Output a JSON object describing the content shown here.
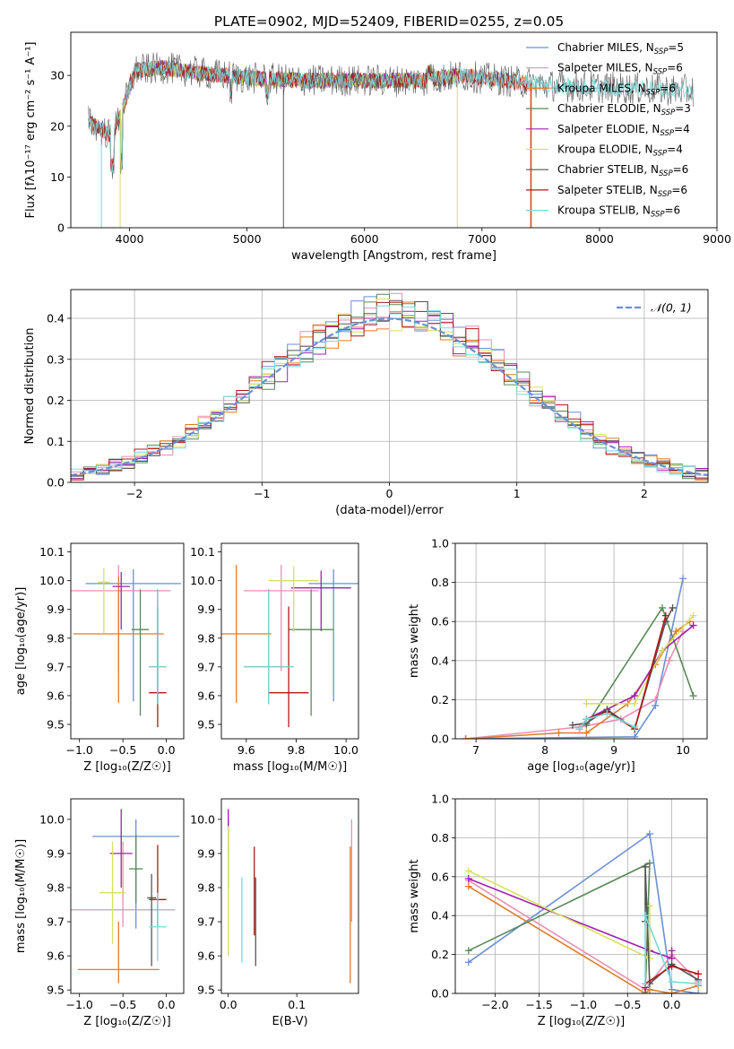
{
  "figure_title": "PLATE=0902, MJD=52409, FIBERID=0255, z=0.05",
  "colors": {
    "Chabrier MILES": "#6b8fd6",
    "Salpeter MILES": "#e88fb5",
    "Kroupa MILES": "#e07b2a",
    "Chabrier ELODIE": "#5a8a5a",
    "Salpeter ELODIE": "#a020b0",
    "Kroupa ELODIE": "#d8e060",
    "Chabrier STELIB": "#555555",
    "Salpeter STELIB": "#b01818",
    "Kroupa STELIB": "#78d8d8"
  },
  "chart_data": [
    {
      "id": "spectrum",
      "type": "line",
      "title": "PLATE=0902, MJD=52409, FIBERID=0255, z=0.05",
      "xlabel": "wavelength [Angstrom, rest frame]",
      "ylabel": "Flux [fλ10⁻¹⁷ erg cm⁻² s⁻¹ A⁻¹]",
      "xlim": [
        3500,
        9000
      ],
      "ylim": [
        0,
        38.5
      ],
      "xticks": [
        4000,
        5000,
        6000,
        7000,
        8000,
        9000
      ],
      "yticks": [
        0,
        10,
        20,
        30
      ],
      "grid": false,
      "legend_position": "top-right",
      "legend": [
        {
          "label": "Chabrier MILES, N",
          "sub": "SSP",
          "suffix": "=5"
        },
        {
          "label": "Salpeter MILES, N",
          "sub": "SSP",
          "suffix": "=6"
        },
        {
          "label": "Kroupa MILES, N",
          "sub": "SSP",
          "suffix": "=6"
        },
        {
          "label": "Chabrier ELODIE, N",
          "sub": "SSP",
          "suffix": "=3"
        },
        {
          "label": "Salpeter ELODIE, N",
          "sub": "SSP",
          "suffix": "=4"
        },
        {
          "label": "Kroupa ELODIE, N",
          "sub": "SSP",
          "suffix": "=4"
        },
        {
          "label": "Chabrier STELIB, N",
          "sub": "SSP",
          "suffix": "=6"
        },
        {
          "label": "Salpeter STELIB, N",
          "sub": "SSP",
          "suffix": "=6"
        },
        {
          "label": "Kroupa STELIB, N",
          "sub": "SSP",
          "suffix": "=6"
        }
      ],
      "series": [
        {
          "name": "Chabrier MILES",
          "wave_range": [
            3650,
            7400
          ],
          "flat_to": 8100,
          "flat_value": 27.5
        },
        {
          "name": "Salpeter MILES",
          "wave_range": [
            3650,
            7400
          ],
          "flat_to": 7600,
          "flat_value": 27.5
        },
        {
          "name": "Kroupa MILES",
          "wave_range": [
            3650,
            7400
          ],
          "flat_to": 7600,
          "flat_value": 27.5
        },
        {
          "name": "Chabrier ELODIE",
          "wave_range": [
            3900,
            6800
          ]
        },
        {
          "name": "Salpeter ELODIE",
          "wave_range": [
            3900,
            6800
          ]
        },
        {
          "name": "Kroupa ELODIE",
          "wave_range": [
            3900,
            6800
          ]
        },
        {
          "name": "Chabrier STELIB",
          "wave_range": [
            3650,
            8800
          ]
        },
        {
          "name": "Salpeter STELIB",
          "wave_range": [
            3650,
            7400
          ]
        },
        {
          "name": "Kroupa STELIB",
          "wave_range": [
            3650,
            8800
          ]
        }
      ],
      "continuum": [
        [
          3650,
          21
        ],
        [
          3850,
          18
        ],
        [
          3950,
          24
        ],
        [
          4050,
          31
        ],
        [
          4300,
          31.5
        ],
        [
          4600,
          30.5
        ],
        [
          5000,
          29.5
        ],
        [
          5500,
          29
        ],
        [
          6000,
          29
        ],
        [
          6500,
          29
        ],
        [
          6800,
          30
        ],
        [
          7200,
          29
        ],
        [
          7600,
          28
        ],
        [
          8200,
          27.5
        ],
        [
          8800,
          27
        ]
      ]
    },
    {
      "id": "residuals",
      "type": "histogram",
      "xlabel": "(data-model)/error",
      "ylabel": "Normed distribution",
      "xlim": [
        -2.5,
        2.5
      ],
      "ylim": [
        0,
        0.47
      ],
      "xticks": [
        -2,
        -1,
        0,
        1,
        2
      ],
      "yticks": [
        0.0,
        0.1,
        0.2,
        0.3,
        0.4
      ],
      "grid": true,
      "legend_position": "top-right",
      "legend_label": "𝒩(0, 1)",
      "bin_width": 0.1,
      "reference_curve": "normal(0,1)"
    },
    {
      "id": "age-vs-z",
      "type": "scatter-errorbar",
      "xlabel": "Z [log₁₀(Z/Z☉)]",
      "ylabel": "age  [log₁₀(age/yr)]",
      "xlim": [
        -1.1,
        0.2
      ],
      "ylim": [
        9.45,
        10.13
      ],
      "xticks": [
        -1.0,
        -0.5,
        0.0
      ],
      "yticks": [
        9.5,
        9.6,
        9.7,
        9.8,
        9.9,
        10.0,
        10.1
      ],
      "points": [
        {
          "name": "Chabrier MILES",
          "x": -0.38,
          "xerr": 0.55,
          "y": 9.99,
          "yerr": 0.05,
          "yerr_lo": 0.41
        },
        {
          "name": "Salpeter MILES",
          "x": -0.55,
          "xerr": 0.6,
          "y": 9.965,
          "yerr": 0.09,
          "yerr_lo": 0.28
        },
        {
          "name": "Kroupa MILES",
          "x": -0.55,
          "xerr": 0.52,
          "y": 9.815,
          "yerr": 0.2,
          "yerr_lo": 0.24
        },
        {
          "name": "Chabrier ELODIE",
          "x": -0.3,
          "xerr": 0.1,
          "y": 9.83,
          "yerr": 0.14,
          "yerr_lo": 0.3
        },
        {
          "name": "Salpeter ELODIE",
          "x": -0.52,
          "xerr": 0.1,
          "y": 9.98,
          "yerr": 0.05,
          "yerr_lo": 0.15
        },
        {
          "name": "Kroupa ELODIE",
          "x": -0.72,
          "xerr": 0.07,
          "y": 9.995,
          "yerr": 0.05,
          "yerr_lo": 0.18
        },
        {
          "name": "Chabrier STELIB",
          "x": -0.1,
          "xerr": 0.1,
          "y": 9.7,
          "yerr": 0.27,
          "yerr_lo": 0.13
        },
        {
          "name": "Salpeter STELIB",
          "x": -0.1,
          "xerr": 0.1,
          "y": 9.61,
          "yerr": 0.3,
          "yerr_lo": 0.12
        },
        {
          "name": "Kroupa STELIB",
          "x": -0.1,
          "xerr": 0.1,
          "y": 9.7,
          "yerr": 0.27,
          "yerr_lo": 0.13
        }
      ]
    },
    {
      "id": "age-vs-mass",
      "type": "scatter-errorbar",
      "xlabel": "mass [log₁₀(M/M☉)]",
      "ylabel": "",
      "xlim": [
        9.5,
        10.05
      ],
      "ylim": [
        9.45,
        10.13
      ],
      "xticks": [
        9.6,
        9.8,
        10.0
      ],
      "yticks": [
        9.5,
        9.6,
        9.7,
        9.8,
        9.9,
        10.0,
        10.1
      ],
      "points": [
        {
          "name": "Chabrier MILES",
          "x": 9.95,
          "xerr": 0.1,
          "y": 9.99,
          "yerr": 0.05,
          "yerr_lo": 0.41
        },
        {
          "name": "Salpeter MILES",
          "x": 9.74,
          "xerr": 0.15,
          "y": 9.965,
          "yerr": 0.09,
          "yerr_lo": 0.28
        },
        {
          "name": "Kroupa MILES",
          "x": 9.56,
          "xerr": 0.14,
          "y": 9.815,
          "yerr": 0.24,
          "yerr_lo": 0.24
        },
        {
          "name": "Chabrier ELODIE",
          "x": 9.86,
          "xerr": 0.09,
          "y": 9.83,
          "yerr": 0.14,
          "yerr_lo": 0.3
        },
        {
          "name": "Salpeter ELODIE",
          "x": 9.9,
          "xerr": 0.12,
          "y": 9.975,
          "yerr": 0.06,
          "yerr_lo": 0.15
        },
        {
          "name": "Kroupa ELODIE",
          "x": 9.79,
          "xerr": 0.1,
          "y": 10.0,
          "yerr": 0.05,
          "yerr_lo": 0.18
        },
        {
          "name": "Chabrier STELIB",
          "x": 9.69,
          "xerr": 0.1,
          "y": 9.7,
          "yerr": 0.27,
          "yerr_lo": 0.13
        },
        {
          "name": "Salpeter STELIB",
          "x": 9.77,
          "xerr": 0.08,
          "y": 9.61,
          "yerr": 0.3,
          "yerr_lo": 0.12
        },
        {
          "name": "Kroupa STELIB",
          "x": 9.69,
          "xerr": 0.1,
          "y": 9.7,
          "yerr": 0.27,
          "yerr_lo": 0.13
        }
      ]
    },
    {
      "id": "massweight-vs-age",
      "type": "line",
      "xlabel": "age  [log₁₀(age/yr)]",
      "ylabel": "mass weight",
      "xlim": [
        6.7,
        10.35
      ],
      "ylim": [
        0,
        1.0
      ],
      "xticks": [
        7,
        8,
        9,
        10
      ],
      "yticks": [
        0.0,
        0.2,
        0.4,
        0.6,
        0.8,
        1.0
      ],
      "grid": true,
      "series": [
        {
          "name": "Chabrier MILES",
          "x": [
            6.85,
            9.3,
            9.6,
            10.0
          ],
          "y": [
            0.0,
            0.01,
            0.17,
            0.82
          ]
        },
        {
          "name": "Salpeter MILES",
          "x": [
            6.85,
            8.5,
            9.1,
            9.6,
            9.8,
            10.0
          ],
          "y": [
            0.0,
            0.06,
            0.1,
            0.2,
            0.4,
            0.55
          ]
        },
        {
          "name": "Kroupa MILES",
          "x": [
            6.85,
            8.2,
            8.6,
            9.2,
            9.6,
            9.9,
            10.1
          ],
          "y": [
            0.0,
            0.03,
            0.03,
            0.18,
            0.38,
            0.55,
            0.6
          ]
        },
        {
          "name": "Chabrier ELODIE",
          "x": [
            8.6,
            9.7,
            10.15
          ],
          "y": [
            0.07,
            0.67,
            0.22
          ]
        },
        {
          "name": "Salpeter ELODIE",
          "x": [
            8.6,
            9.3,
            9.7,
            10.15
          ],
          "y": [
            0.1,
            0.22,
            0.45,
            0.58
          ]
        },
        {
          "name": "Kroupa ELODIE",
          "x": [
            8.6,
            9.3,
            9.7,
            10.15
          ],
          "y": [
            0.18,
            0.18,
            0.45,
            0.63
          ]
        },
        {
          "name": "Chabrier STELIB",
          "x": [
            8.4,
            8.6,
            8.9,
            9.3,
            9.75,
            9.85
          ],
          "y": [
            0.07,
            0.08,
            0.15,
            0.05,
            0.6,
            0.67
          ]
        },
        {
          "name": "Salpeter STELIB",
          "x": [
            8.5,
            8.6,
            8.9,
            9.3,
            9.75
          ],
          "y": [
            0.05,
            0.1,
            0.14,
            0.05,
            0.63
          ]
        },
        {
          "name": "Kroupa STELIB",
          "x": [
            8.5,
            8.6,
            8.9,
            9.3
          ],
          "y": [
            0.05,
            0.1,
            0.13,
            0.06
          ]
        }
      ]
    },
    {
      "id": "mass-vs-z",
      "type": "scatter-errorbar",
      "xlabel": "Z [log₁₀(Z/Z☉)]",
      "ylabel": "mass [log₁₀(M/M☉)]",
      "xlim": [
        -1.1,
        0.2
      ],
      "ylim": [
        9.49,
        10.06
      ],
      "xticks": [
        -1.0,
        -0.5,
        0.0
      ],
      "yticks": [
        9.5,
        9.6,
        9.7,
        9.8,
        9.9,
        10.0
      ],
      "points": [
        {
          "name": "Chabrier MILES",
          "x": -0.35,
          "xerr": 0.5,
          "y": 9.95,
          "yerr": 0.05,
          "yerr_lo": 0.27
        },
        {
          "name": "Salpeter MILES",
          "x": -0.5,
          "xerr": 0.6,
          "y": 9.735,
          "yerr": 0.2,
          "yerr_lo": 0.05
        },
        {
          "name": "Kroupa MILES",
          "x": -0.55,
          "xerr": 0.47,
          "y": 9.56,
          "yerr": 0.14,
          "yerr_lo": 0.04
        },
        {
          "name": "Chabrier ELODIE",
          "x": -0.35,
          "xerr": 0.08,
          "y": 9.855,
          "yerr": 0.1,
          "yerr_lo": 0.1
        },
        {
          "name": "Salpeter ELODIE",
          "x": -0.52,
          "xerr": 0.13,
          "y": 9.9,
          "yerr": 0.13,
          "yerr_lo": 0.1
        },
        {
          "name": "Kroupa ELODIE",
          "x": -0.62,
          "xerr": 0.15,
          "y": 9.785,
          "yerr": 0.15,
          "yerr_lo": 0.15
        },
        {
          "name": "Chabrier STELIB",
          "x": -0.17,
          "xerr": 0.05,
          "y": 9.77,
          "yerr": 0.07,
          "yerr_lo": 0.2
        },
        {
          "name": "Salpeter STELIB",
          "x": -0.1,
          "xerr": 0.1,
          "y": 9.765,
          "yerr": 0.16,
          "yerr_lo": 0.08
        },
        {
          "name": "Kroupa STELIB",
          "x": -0.1,
          "xerr": 0.1,
          "y": 9.685,
          "yerr": 0.1,
          "yerr_lo": 0.1
        }
      ]
    },
    {
      "id": "mass-vs-ebv",
      "type": "scatter-errorbar",
      "xlabel": "E(B-V)",
      "ylabel": "",
      "xlim": [
        -0.01,
        0.19
      ],
      "ylim": [
        9.49,
        10.06
      ],
      "xticks": [
        0.0,
        0.1
      ],
      "yticks": [
        9.5,
        9.6,
        9.7,
        9.8,
        9.9,
        10.0
      ],
      "points": [
        {
          "name": "Chabrier MILES",
          "x": 0.0,
          "xerr": 0.0,
          "y": 9.9,
          "yerr": 0.1,
          "yerr_lo": 0.1
        },
        {
          "name": "Salpeter MILES",
          "x": 0.18,
          "xerr": 0.0,
          "y": 9.8,
          "yerr": 0.2,
          "yerr_lo": 0.1
        },
        {
          "name": "Kroupa MILES",
          "x": 0.178,
          "xerr": 0.0,
          "y": 9.72,
          "yerr": 0.2,
          "yerr_lo": 0.2
        },
        {
          "name": "Chabrier ELODIE",
          "x": 0.0,
          "xerr": 0.0,
          "y": 9.9,
          "yerr": 0.1,
          "yerr_lo": 0.1
        },
        {
          "name": "Salpeter ELODIE",
          "x": 0.0,
          "xerr": 0.0,
          "y": 9.95,
          "yerr": 0.08,
          "yerr_lo": 0.05
        },
        {
          "name": "Kroupa ELODIE",
          "x": 0.0,
          "xerr": 0.0,
          "y": 9.8,
          "yerr": 0.18,
          "yerr_lo": 0.2
        },
        {
          "name": "Chabrier STELIB",
          "x": 0.04,
          "xerr": 0.0,
          "y": 9.74,
          "yerr": 0.09,
          "yerr_lo": 0.17
        },
        {
          "name": "Salpeter STELIB",
          "x": 0.038,
          "xerr": 0.0,
          "y": 9.79,
          "yerr": 0.13,
          "yerr_lo": 0.13
        },
        {
          "name": "Kroupa STELIB",
          "x": 0.02,
          "xerr": 0.0,
          "y": 9.7,
          "yerr": 0.13,
          "yerr_lo": 0.12
        }
      ]
    },
    {
      "id": "massweight-vs-z",
      "type": "line",
      "xlabel": "Z [log₁₀(Z/Z☉)]",
      "ylabel": "mass weight",
      "xlim": [
        -2.45,
        0.4
      ],
      "ylim": [
        0,
        1.0
      ],
      "xticks": [
        -2.0,
        -1.5,
        -1.0,
        -0.5,
        0.0
      ],
      "yticks": [
        0.0,
        0.2,
        0.4,
        0.6,
        0.8,
        1.0
      ],
      "grid": true,
      "series": [
        {
          "name": "Chabrier MILES",
          "x": [
            -2.3,
            -0.25,
            0.0,
            0.3
          ],
          "y": [
            0.16,
            0.82,
            0.02,
            0.0
          ]
        },
        {
          "name": "Salpeter MILES",
          "x": [
            -2.3,
            -0.3,
            0.0,
            0.3
          ],
          "y": [
            0.58,
            0.02,
            0.2,
            0.06
          ]
        },
        {
          "name": "Kroupa MILES",
          "x": [
            -2.3,
            -0.3,
            -0.25,
            0.0,
            0.3
          ],
          "y": [
            0.55,
            0.0,
            0.02,
            0.0,
            0.04
          ]
        },
        {
          "name": "Chabrier ELODIE",
          "x": [
            -2.3,
            -0.25,
            -0.3
          ],
          "y": [
            0.22,
            0.67,
            0.0
          ]
        },
        {
          "name": "Salpeter ELODIE",
          "x": [
            -2.3,
            -0.25,
            0.0,
            0.0
          ],
          "y": [
            0.59,
            0.22,
            0.18,
            0.22
          ]
        },
        {
          "name": "Kroupa ELODIE",
          "x": [
            -2.3,
            -0.25,
            -0.25
          ],
          "y": [
            0.63,
            0.18,
            0.45
          ]
        },
        {
          "name": "Chabrier STELIB",
          "x": [
            -0.3,
            -0.3,
            -0.25,
            0.0,
            0.3
          ],
          "y": [
            0.37,
            0.65,
            0.05,
            0.15,
            0.07
          ]
        },
        {
          "name": "Salpeter STELIB",
          "x": [
            -0.3,
            -0.3,
            0.0,
            0.3
          ],
          "y": [
            0.03,
            0.05,
            0.14,
            0.1
          ]
        },
        {
          "name": "Kroupa STELIB",
          "x": [
            -0.3,
            -0.3,
            0.0,
            0.3
          ],
          "y": [
            0.05,
            0.4,
            0.06,
            0.05
          ]
        }
      ]
    }
  ]
}
